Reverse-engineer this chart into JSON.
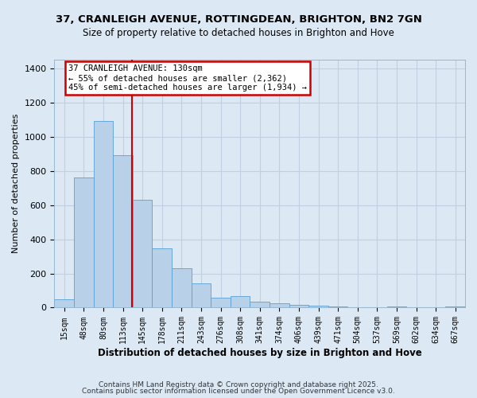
{
  "title1": "37, CRANLEIGH AVENUE, ROTTINGDEAN, BRIGHTON, BN2 7GN",
  "title2": "Size of property relative to detached houses in Brighton and Hove",
  "xlabel": "Distribution of detached houses by size in Brighton and Hove",
  "ylabel": "Number of detached properties",
  "categories": [
    "15sqm",
    "48sqm",
    "80sqm",
    "113sqm",
    "145sqm",
    "178sqm",
    "211sqm",
    "243sqm",
    "276sqm",
    "308sqm",
    "341sqm",
    "374sqm",
    "406sqm",
    "439sqm",
    "471sqm",
    "504sqm",
    "537sqm",
    "569sqm",
    "602sqm",
    "634sqm",
    "667sqm"
  ],
  "values": [
    50,
    760,
    1090,
    890,
    630,
    345,
    228,
    140,
    60,
    68,
    33,
    27,
    18,
    10,
    7,
    1,
    0,
    8,
    0,
    0,
    7
  ],
  "bar_color": "#b8d0e8",
  "bar_edge_color": "#5a9fd4",
  "bar_width": 1.0,
  "grid_color": "#c0d0e0",
  "background_color": "#dce9f5",
  "annotation_line1": "37 CRANLEIGH AVENUE: 130sqm",
  "annotation_line2": "← 55% of detached houses are smaller (2,362)",
  "annotation_line3": "45% of semi-detached houses are larger (1,934) →",
  "annotation_box_color": "#ffffff",
  "annotation_box_edge_color": "#cc0000",
  "red_line_x": 3.48,
  "ylim": [
    0,
    1450
  ],
  "yticks": [
    0,
    200,
    400,
    600,
    800,
    1000,
    1200,
    1400
  ],
  "footer1": "Contains HM Land Registry data © Crown copyright and database right 2025.",
  "footer2": "Contains public sector information licensed under the Open Government Licence v3.0."
}
